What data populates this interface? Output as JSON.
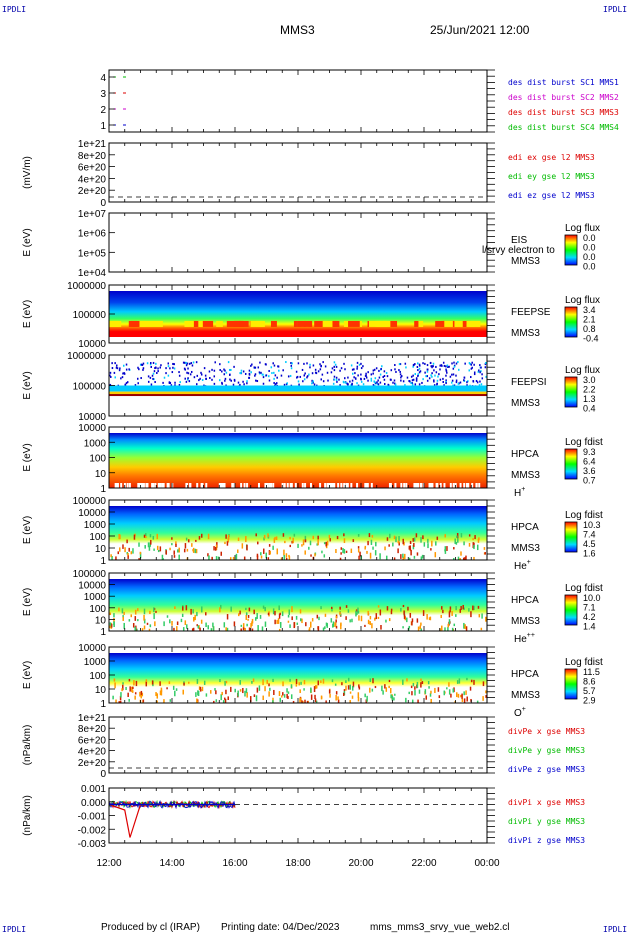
{
  "corner_labels": {
    "top_left": "IPDLI",
    "top_right": "IPDLI",
    "bottom_left": "IPDLI",
    "bottom_right": "IPDLI"
  },
  "header": {
    "title": "MMS3",
    "datetime": "25/Jun/2021 12:00"
  },
  "footer": {
    "produced_by": "Produced by cl (IRAP)",
    "printing_date": "Printing date: 04/Dec/2023",
    "script": "mms_mms3_srvy_vue_web2.cl"
  },
  "chart_data": {
    "type": "multi-panel-time-series",
    "x_ticks": [
      "12:00",
      "14:00",
      "16:00",
      "18:00",
      "20:00",
      "22:00",
      "00:00"
    ],
    "panels": [
      {
        "id": "burst",
        "type": "line",
        "ylabel": "",
        "yticks": [
          "4",
          "3",
          "2",
          "1"
        ],
        "legend": [
          {
            "text": "des dist burst SC1 MMS1",
            "color": "#0000cc"
          },
          {
            "text": "des dist burst SC2 MMS2",
            "color": "#cc00cc"
          },
          {
            "text": "des dist burst SC3 MMS3",
            "color": "#dd0000"
          },
          {
            "text": "des dist burst SC4 MMS4",
            "color": "#00bb00"
          }
        ],
        "series": [
          {
            "name": "SC4",
            "level": 4,
            "color": "#00bb00",
            "x_start": "12:00",
            "x_end": "12:40"
          },
          {
            "name": "SC3",
            "level": 3,
            "color": "#dd0000",
            "x_start": "12:00",
            "x_end": "12:40"
          },
          {
            "name": "SC2",
            "level": 2,
            "color": "#cc00cc",
            "x_start": "12:00",
            "x_end": "12:40"
          },
          {
            "name": "SC1",
            "level": 1,
            "color": "#0000cc",
            "x_start": "12:00",
            "x_end": "12:40"
          }
        ]
      },
      {
        "id": "edi",
        "type": "line",
        "ylabel": "(mV/m)",
        "yticks": [
          "1e+21",
          "8e+20",
          "6e+20",
          "4e+20",
          "2e+20",
          "0"
        ],
        "legend": [
          {
            "text": "edi ex gse l2 MMS3",
            "color": "#dd0000"
          },
          {
            "text": "edi ey gse l2 MMS3",
            "color": "#00bb00"
          },
          {
            "text": "edi ez gse l2 MMS3",
            "color": "#0000cc"
          }
        ]
      },
      {
        "id": "eis",
        "type": "heatmap",
        "ylabel": "E (eV)",
        "yticks": [
          "1e+07",
          "1e+06",
          "1e+05",
          "1e+04"
        ],
        "instrument": "EIS",
        "instrument_sub": "MMS3",
        "overlay_text": "l/srvy electron to",
        "colorbar_title": "Log flux",
        "colorbar_ticks": [
          "0.0",
          "0.0",
          "0.0",
          "0.0"
        ]
      },
      {
        "id": "feeps_e",
        "type": "heatmap",
        "ylabel": "E (eV)",
        "yticks": [
          "1000000",
          "100000",
          "10000"
        ],
        "instrument": "FEEPSE",
        "instrument_sub": "MMS3",
        "colorbar_title": "Log flux",
        "colorbar_ticks": [
          "3.4",
          "2.1",
          "0.8",
          "-0.4"
        ]
      },
      {
        "id": "feeps_i",
        "type": "heatmap",
        "ylabel": "E (eV)",
        "yticks": [
          "1000000",
          "100000",
          "10000"
        ],
        "instrument": "FEEPSI",
        "instrument_sub": "MMS3",
        "colorbar_title": "Log flux",
        "colorbar_ticks": [
          "3.0",
          "2.2",
          "1.3",
          "0.4"
        ]
      },
      {
        "id": "hpca_h",
        "type": "heatmap",
        "ylabel": "E (eV)",
        "yticks": [
          "10000",
          "1000",
          "100",
          "10",
          "1"
        ],
        "instrument": "HPCA",
        "instrument_sub": "MMS3",
        "species": "H",
        "species_charge": "+",
        "colorbar_title": "Log fdist",
        "colorbar_ticks": [
          "9.3",
          "6.4",
          "3.6",
          "0.7"
        ]
      },
      {
        "id": "hpca_he",
        "type": "heatmap",
        "ylabel": "E (eV)",
        "yticks": [
          "100000",
          "10000",
          "1000",
          "100",
          "10",
          "1"
        ],
        "instrument": "HPCA",
        "instrument_sub": "MMS3",
        "species": "He",
        "species_charge": "+",
        "colorbar_title": "Log fdist",
        "colorbar_ticks": [
          "10.3",
          "7.4",
          "4.5",
          "1.6"
        ]
      },
      {
        "id": "hpca_hepp",
        "type": "heatmap",
        "ylabel": "E (eV)",
        "yticks": [
          "100000",
          "10000",
          "1000",
          "100",
          "10",
          "1"
        ],
        "instrument": "HPCA",
        "instrument_sub": "MMS3",
        "species": "He",
        "species_charge": "++",
        "colorbar_title": "Log fdist",
        "colorbar_ticks": [
          "10.0",
          "7.1",
          "4.2",
          "1.4"
        ]
      },
      {
        "id": "hpca_o",
        "type": "heatmap",
        "ylabel": "E (eV)",
        "yticks": [
          "10000",
          "1000",
          "100",
          "10",
          "1"
        ],
        "instrument": "HPCA",
        "instrument_sub": "MMS3",
        "species": "O",
        "species_charge": "+",
        "colorbar_title": "Log fdist",
        "colorbar_ticks": [
          "11.5",
          "8.6",
          "5.7",
          "2.9"
        ]
      },
      {
        "id": "divpe",
        "type": "line",
        "ylabel": "(nPa/km)",
        "yticks": [
          "1e+21",
          "8e+20",
          "6e+20",
          "4e+20",
          "2e+20",
          "0"
        ],
        "legend": [
          {
            "text": "divPe x gse MMS3",
            "color": "#dd0000"
          },
          {
            "text": "divPe y gse MMS3",
            "color": "#00bb00"
          },
          {
            "text": "divPe z gse MMS3",
            "color": "#0000cc"
          }
        ]
      },
      {
        "id": "divpi",
        "type": "line",
        "ylabel": "(nPa/km)",
        "yticks": [
          "0.001",
          "0.000",
          "-0.001",
          "-0.002",
          "-0.003"
        ],
        "ylim": [
          -0.0035,
          0.0015
        ],
        "legend": [
          {
            "text": "divPi x gse MMS3",
            "color": "#dd0000"
          },
          {
            "text": "divPi y gse MMS3",
            "color": "#00bb00"
          },
          {
            "text": "divPi z gse MMS3",
            "color": "#0000cc"
          }
        ],
        "series": [
          {
            "name": "divPi x gse MMS3",
            "color": "#dd0000",
            "x": [
              "12:00",
              "12:30",
              "12:40",
              "13:00",
              "14:00",
              "15:00",
              "16:00"
            ],
            "y": [
              0.0,
              -0.0005,
              -0.003,
              0.0,
              0.0,
              0.0,
              0.0
            ]
          },
          {
            "name": "divPi y gse MMS3",
            "color": "#00bb00",
            "x": [
              "12:00",
              "13:00",
              "14:00",
              "15:00",
              "16:00"
            ],
            "y": [
              0.0,
              0.0,
              0.0,
              0.0,
              0.0
            ]
          },
          {
            "name": "divPi z gse MMS3",
            "color": "#0000cc",
            "x": [
              "12:00",
              "13:00",
              "14:00",
              "15:00",
              "16:00"
            ],
            "y": [
              0.0,
              0.0,
              0.0,
              0.0,
              0.0
            ]
          }
        ]
      }
    ]
  }
}
